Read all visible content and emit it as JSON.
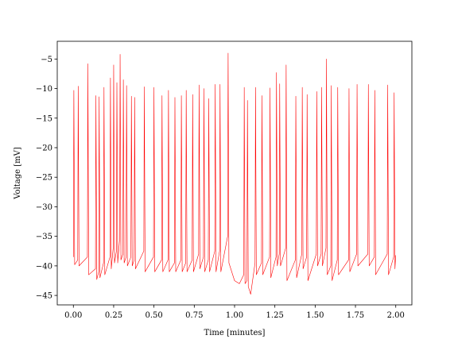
{
  "chart_data": {
    "type": "line",
    "xlabel": "Time [minutes]",
    "ylabel": "Voltage [mV]",
    "x": [
      0.0,
      0.003,
      0.008,
      0.027,
      0.03,
      0.035,
      0.087,
      0.09,
      0.095,
      0.137,
      0.14,
      0.145,
      0.157,
      0.16,
      0.165,
      0.187,
      0.19,
      0.195,
      0.227,
      0.23,
      0.235,
      0.247,
      0.25,
      0.255,
      0.267,
      0.27,
      0.275,
      0.287,
      0.29,
      0.295,
      0.307,
      0.31,
      0.315,
      0.327,
      0.33,
      0.335,
      0.357,
      0.36,
      0.365,
      0.377,
      0.38,
      0.385,
      0.437,
      0.44,
      0.445,
      0.497,
      0.5,
      0.505,
      0.547,
      0.55,
      0.555,
      0.587,
      0.59,
      0.595,
      0.627,
      0.63,
      0.635,
      0.667,
      0.67,
      0.675,
      0.697,
      0.7,
      0.705,
      0.737,
      0.74,
      0.745,
      0.777,
      0.78,
      0.785,
      0.807,
      0.81,
      0.815,
      0.837,
      0.84,
      0.845,
      0.877,
      0.88,
      0.885,
      0.907,
      0.91,
      0.915,
      0.957,
      0.96,
      0.965,
      1.0,
      1.03,
      1.057,
      1.06,
      1.065,
      1.077,
      1.08,
      1.085,
      1.1,
      1.127,
      1.13,
      1.135,
      1.167,
      1.17,
      1.175,
      1.217,
      1.22,
      1.225,
      1.257,
      1.26,
      1.265,
      1.277,
      1.28,
      1.285,
      1.317,
      1.32,
      1.325,
      1.377,
      1.38,
      1.385,
      1.417,
      1.42,
      1.425,
      1.447,
      1.45,
      1.455,
      1.507,
      1.51,
      1.515,
      1.537,
      1.54,
      1.545,
      1.567,
      1.57,
      1.575,
      1.597,
      1.6,
      1.605,
      1.637,
      1.64,
      1.645,
      1.707,
      1.71,
      1.715,
      1.757,
      1.76,
      1.765,
      1.827,
      1.83,
      1.835,
      1.867,
      1.87,
      1.875,
      1.947,
      1.95,
      1.955,
      1.987,
      1.99,
      1.995,
      2.0
    ],
    "series": [
      {
        "color": "#ff0000",
        "values": [
          -38.5,
          -10.3,
          -39.8,
          -39.0,
          -9.6,
          -40.0,
          -38.5,
          -5.8,
          -41.5,
          -40.5,
          -11.2,
          -42.3,
          -41.0,
          -11.4,
          -42.0,
          -39.5,
          -9.8,
          -41.5,
          -38.5,
          -8.2,
          -40.5,
          -37.0,
          -6.0,
          -39.5,
          -37.5,
          -9.0,
          -39.5,
          -35.5,
          -4.2,
          -39.0,
          -38.0,
          -8.5,
          -39.5,
          -38.5,
          -9.5,
          -40.0,
          -38.5,
          -11.3,
          -40.0,
          -39.0,
          -11.5,
          -40.5,
          -37.5,
          -9.7,
          -41.0,
          -38.5,
          -9.8,
          -41.0,
          -39.0,
          -11.2,
          -41.0,
          -39.0,
          -10.3,
          -41.0,
          -39.5,
          -11.5,
          -41.0,
          -39.0,
          -11.2,
          -41.0,
          -39.5,
          -10.3,
          -41.0,
          -39.0,
          -11.0,
          -41.0,
          -38.0,
          -9.4,
          -40.5,
          -38.5,
          -10.0,
          -41.0,
          -39.0,
          -11.7,
          -41.0,
          -37.5,
          -9.3,
          -41.0,
          -37.5,
          -9.3,
          -41.0,
          -35.0,
          -4.0,
          -39.5,
          -42.5,
          -43.0,
          -41.5,
          -9.8,
          -43.0,
          -42.5,
          -12.0,
          -43.5,
          -44.8,
          -39.5,
          -9.8,
          -41.5,
          -39.5,
          -11.2,
          -41.5,
          -38.5,
          -9.9,
          -42.0,
          -38.5,
          -7.3,
          -40.0,
          -38.0,
          -9.2,
          -40.0,
          -37.0,
          -6.0,
          -42.5,
          -39.0,
          -11.3,
          -42.0,
          -38.0,
          -9.8,
          -40.5,
          -38.5,
          -11.0,
          -42.5,
          -38.0,
          -10.5,
          -40.0,
          -38.0,
          -9.8,
          -40.0,
          -37.0,
          -5.0,
          -41.5,
          -40.0,
          -9.5,
          -42.5,
          -39.0,
          -9.8,
          -41.5,
          -39.0,
          -10.0,
          -41.0,
          -38.0,
          -9.3,
          -40.0,
          -38.0,
          -9.3,
          -40.0,
          -38.5,
          -10.3,
          -41.5,
          -38.0,
          -9.4,
          -41.5,
          -38.5,
          -10.7,
          -40.5,
          -38.2
        ]
      }
    ],
    "xlim": [
      -0.1,
      2.1
    ],
    "ylim": [
      -46.6,
      -2
    ],
    "xticks": [
      {
        "value": 0,
        "label": "0.00"
      },
      {
        "value": 0.25,
        "label": "0.25"
      },
      {
        "value": 0.5,
        "label": "0.50"
      },
      {
        "value": 0.75,
        "label": "0.75"
      },
      {
        "value": 1,
        "label": "1.00"
      },
      {
        "value": 1.25,
        "label": "1.25"
      },
      {
        "value": 1.5,
        "label": "1.50"
      },
      {
        "value": 1.75,
        "label": "1.75"
      },
      {
        "value": 2,
        "label": "2.00"
      }
    ],
    "yticks": [
      {
        "value": -45,
        "label": "−45"
      },
      {
        "value": -40,
        "label": "−40"
      },
      {
        "value": -35,
        "label": "−35"
      },
      {
        "value": -30,
        "label": "−30"
      },
      {
        "value": -25,
        "label": "−25"
      },
      {
        "value": -20,
        "label": "−20"
      },
      {
        "value": -15,
        "label": "−15"
      },
      {
        "value": -10,
        "label": "−10"
      },
      {
        "value": -5,
        "label": "−5"
      }
    ],
    "grid": false
  }
}
